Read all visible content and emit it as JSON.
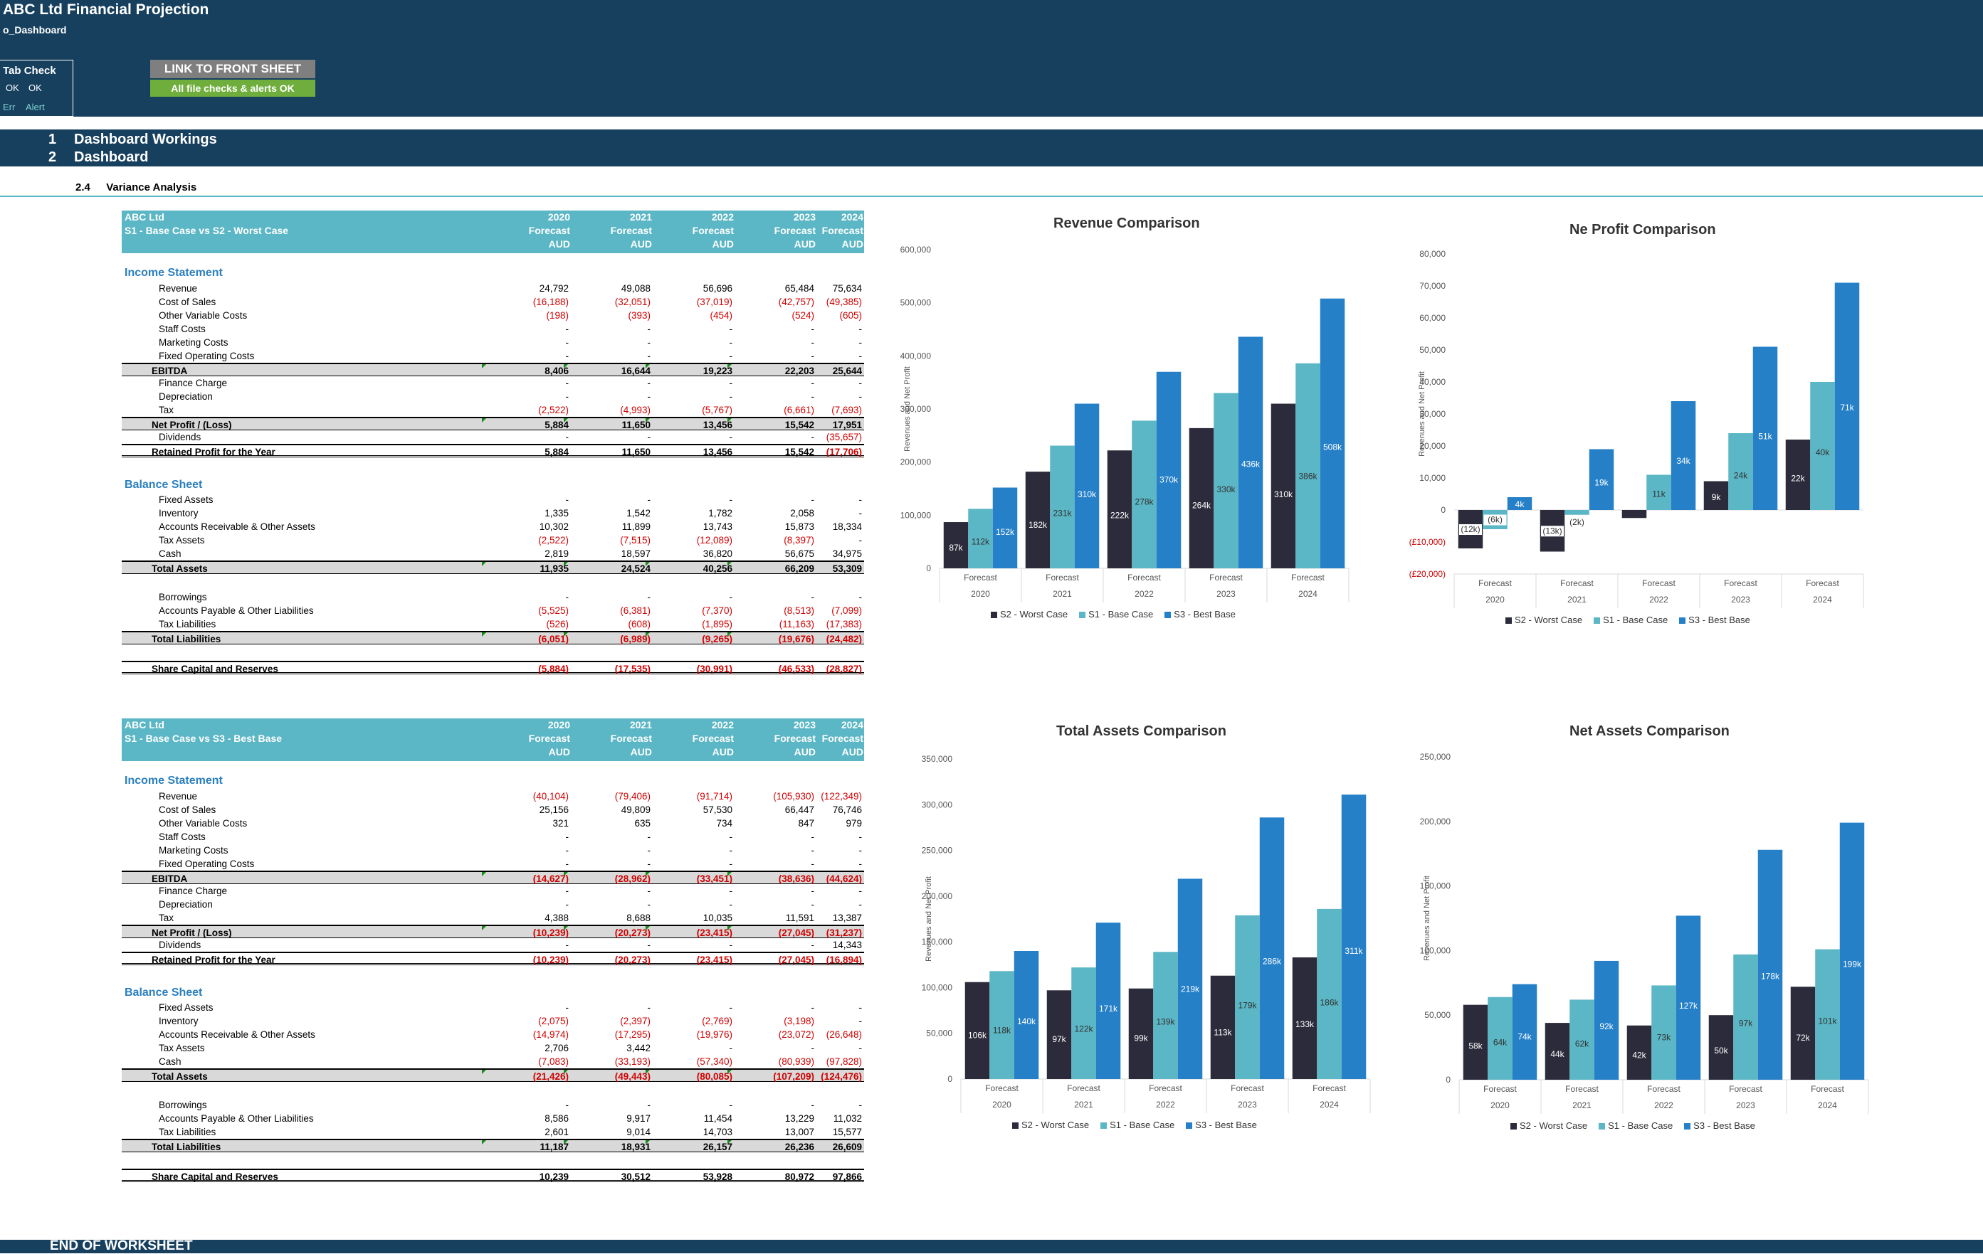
{
  "header": {
    "app_title": "ABC Ltd Financial Projection",
    "sheet_name": "o_Dashboard",
    "tab_check": {
      "title": "Tab Check",
      "ok1": "OK",
      "ok2": "OK",
      "err": "Err",
      "alert": "Alert"
    },
    "link_button": "LINK TO FRONT SHEET",
    "checks_status": "All file checks & alerts OK"
  },
  "sections": [
    {
      "num": "1",
      "label": "Dashboard Workings"
    },
    {
      "num": "2",
      "label": "Dashboard"
    }
  ],
  "subsection": {
    "num": "2.4",
    "label": "Variance Analysis"
  },
  "footer": "END OF WORKSHEET",
  "colors": {
    "dark_navy": "#17405f",
    "teal": "#5bb6c5",
    "s2": "#2b2b3b",
    "s1": "#5bb6c5",
    "s3": "#2580c8",
    "negative": "#d00000",
    "section_blue": "#2a7fbf",
    "ok_green": "#6fae3c",
    "button_grey": "#7f7f7f"
  },
  "tables": [
    {
      "company": "ABC Ltd",
      "comparison": "S1 - Base Case vs S2 - Worst Case",
      "years": [
        "2020",
        "2021",
        "2022",
        "2023",
        "2024"
      ],
      "period_label": "Forecast",
      "currency": "AUD",
      "income_title": "Income Statement",
      "balance_title": "Balance Sheet",
      "income": [
        {
          "label": "Revenue",
          "vals": [
            "24,792",
            "49,088",
            "56,696",
            "65,484",
            "75,634"
          ]
        },
        {
          "label": "Cost of Sales",
          "vals": [
            "(16,188)",
            "(32,051)",
            "(37,019)",
            "(42,757)",
            "(49,385)"
          ]
        },
        {
          "label": "Other Variable Costs",
          "vals": [
            "(198)",
            "(393)",
            "(454)",
            "(524)",
            "(605)"
          ]
        },
        {
          "label": "Staff Costs",
          "vals": [
            "-",
            "-",
            "-",
            "-",
            "-"
          ]
        },
        {
          "label": "Marketing Costs",
          "vals": [
            "-",
            "-",
            "-",
            "-",
            "-"
          ]
        },
        {
          "label": "Fixed Operating Costs",
          "vals": [
            "-",
            "-",
            "-",
            "-",
            "-"
          ]
        },
        {
          "label": "EBITDA",
          "vals": [
            "8,406",
            "16,644",
            "19,223",
            "22,203",
            "25,644"
          ],
          "total": true
        },
        {
          "label": "Finance Charge",
          "vals": [
            "-",
            "-",
            "-",
            "-",
            "-"
          ]
        },
        {
          "label": "Depreciation",
          "vals": [
            "-",
            "-",
            "-",
            "-",
            "-"
          ]
        },
        {
          "label": "Tax",
          "vals": [
            "(2,522)",
            "(4,993)",
            "(5,767)",
            "(6,661)",
            "(7,693)"
          ]
        },
        {
          "label": "Net Profit / (Loss)",
          "vals": [
            "5,884",
            "11,650",
            "13,456",
            "15,542",
            "17,951"
          ],
          "total": true
        },
        {
          "label": "Dividends",
          "vals": [
            "-",
            "-",
            "-",
            "-",
            "(35,657)"
          ]
        },
        {
          "label": "Retained Profit for the Year",
          "vals": [
            "5,884",
            "11,650",
            "13,456",
            "15,542",
            "(17,706)"
          ],
          "total2": true
        }
      ],
      "assets": [
        {
          "label": "Fixed Assets",
          "vals": [
            "-",
            "-",
            "-",
            "-",
            "-"
          ]
        },
        {
          "label": "Inventory",
          "vals": [
            "1,335",
            "1,542",
            "1,782",
            "2,058",
            "-"
          ]
        },
        {
          "label": "Accounts Receivable & Other Assets",
          "vals": [
            "10,302",
            "11,899",
            "13,743",
            "15,873",
            "18,334"
          ]
        },
        {
          "label": "Tax Assets",
          "vals": [
            "(2,522)",
            "(7,515)",
            "(12,089)",
            "(8,397)",
            "-"
          ]
        },
        {
          "label": "Cash",
          "vals": [
            "2,819",
            "18,597",
            "36,820",
            "56,675",
            "34,975"
          ]
        },
        {
          "label": "Total Assets",
          "vals": [
            "11,935",
            "24,524",
            "40,256",
            "66,209",
            "53,309"
          ],
          "total": true
        }
      ],
      "liabilities": [
        {
          "label": "Borrowings",
          "vals": [
            "-",
            "-",
            "-",
            "-",
            "-"
          ]
        },
        {
          "label": "Accounts Payable & Other Liabilities",
          "vals": [
            "(5,525)",
            "(6,381)",
            "(7,370)",
            "(8,513)",
            "(7,099)"
          ]
        },
        {
          "label": "Tax Liabilities",
          "vals": [
            "(526)",
            "(608)",
            "(1,895)",
            "(11,163)",
            "(17,383)"
          ]
        },
        {
          "label": "Total Liabilities",
          "vals": [
            "(6,051)",
            "(6,989)",
            "(9,265)",
            "(19,676)",
            "(24,482)"
          ],
          "total": true
        }
      ],
      "equity": {
        "label": "Share Capital and Reserves",
        "vals": [
          "(5,884)",
          "(17,535)",
          "(30,991)",
          "(46,533)",
          "(28,827)"
        ]
      }
    },
    {
      "company": "ABC Ltd",
      "comparison": "S1 - Base Case vs S3 - Best Base",
      "years": [
        "2020",
        "2021",
        "2022",
        "2023",
        "2024"
      ],
      "period_label": "Forecast",
      "currency": "AUD",
      "income_title": "Income Statement",
      "balance_title": "Balance Sheet",
      "income": [
        {
          "label": "Revenue",
          "vals": [
            "(40,104)",
            "(79,406)",
            "(91,714)",
            "(105,930)",
            "(122,349)"
          ]
        },
        {
          "label": "Cost of Sales",
          "vals": [
            "25,156",
            "49,809",
            "57,530",
            "66,447",
            "76,746"
          ]
        },
        {
          "label": "Other Variable Costs",
          "vals": [
            "321",
            "635",
            "734",
            "847",
            "979"
          ]
        },
        {
          "label": "Staff Costs",
          "vals": [
            "-",
            "-",
            "-",
            "-",
            "-"
          ]
        },
        {
          "label": "Marketing Costs",
          "vals": [
            "-",
            "-",
            "-",
            "-",
            "-"
          ]
        },
        {
          "label": "Fixed Operating Costs",
          "vals": [
            "-",
            "-",
            "-",
            "-",
            "-"
          ]
        },
        {
          "label": "EBITDA",
          "vals": [
            "(14,627)",
            "(28,962)",
            "(33,451)",
            "(38,636)",
            "(44,624)"
          ],
          "total": true
        },
        {
          "label": "Finance Charge",
          "vals": [
            "-",
            "-",
            "-",
            "-",
            "-"
          ]
        },
        {
          "label": "Depreciation",
          "vals": [
            "-",
            "-",
            "-",
            "-",
            "-"
          ]
        },
        {
          "label": "Tax",
          "vals": [
            "4,388",
            "8,688",
            "10,035",
            "11,591",
            "13,387"
          ]
        },
        {
          "label": "Net Profit / (Loss)",
          "vals": [
            "(10,239)",
            "(20,273)",
            "(23,415)",
            "(27,045)",
            "(31,237)"
          ],
          "total": true
        },
        {
          "label": "Dividends",
          "vals": [
            "-",
            "-",
            "-",
            "-",
            "14,343"
          ]
        },
        {
          "label": "Retained Profit for the Year",
          "vals": [
            "(10,239)",
            "(20,273)",
            "(23,415)",
            "(27,045)",
            "(16,894)"
          ],
          "total2": true
        }
      ],
      "assets": [
        {
          "label": "Fixed Assets",
          "vals": [
            "-",
            "-",
            "-",
            "-",
            "-"
          ]
        },
        {
          "label": "Inventory",
          "vals": [
            "(2,075)",
            "(2,397)",
            "(2,769)",
            "(3,198)",
            "-"
          ]
        },
        {
          "label": "Accounts Receivable & Other Assets",
          "vals": [
            "(14,974)",
            "(17,295)",
            "(19,976)",
            "(23,072)",
            "(26,648)"
          ]
        },
        {
          "label": "Tax Assets",
          "vals": [
            "2,706",
            "3,442",
            "-",
            "-",
            "-"
          ]
        },
        {
          "label": "Cash",
          "vals": [
            "(7,083)",
            "(33,193)",
            "(57,340)",
            "(80,939)",
            "(97,828)"
          ]
        },
        {
          "label": "Total Assets",
          "vals": [
            "(21,426)",
            "(49,443)",
            "(80,085)",
            "(107,209)",
            "(124,476)"
          ],
          "total": true
        }
      ],
      "liabilities": [
        {
          "label": "Borrowings",
          "vals": [
            "-",
            "-",
            "-",
            "-",
            "-"
          ]
        },
        {
          "label": "Accounts Payable & Other Liabilities",
          "vals": [
            "8,586",
            "9,917",
            "11,454",
            "13,229",
            "11,032"
          ]
        },
        {
          "label": "Tax Liabilities",
          "vals": [
            "2,601",
            "9,014",
            "14,703",
            "13,007",
            "15,577"
          ]
        },
        {
          "label": "Total Liabilities",
          "vals": [
            "11,187",
            "18,931",
            "26,157",
            "26,236",
            "26,609"
          ],
          "total": true
        }
      ],
      "equity": {
        "label": "Share Capital and Reserves",
        "vals": [
          "10,239",
          "30,512",
          "53,928",
          "80,972",
          "97,866"
        ]
      }
    }
  ],
  "chart_data": [
    {
      "type": "bar",
      "title": "Revenue Comparison",
      "ylabel": "Revenues and Net Profit",
      "ylim": [
        0,
        600000
      ],
      "yticks": [
        "0",
        "100,000",
        "200,000",
        "300,000",
        "400,000",
        "500,000",
        "600,000"
      ],
      "ytick_values": [
        0,
        100000,
        200000,
        300000,
        400000,
        500000,
        600000
      ],
      "categories": [
        "2020",
        "2021",
        "2022",
        "2023",
        "2024"
      ],
      "category_group": "Forecast",
      "series": [
        {
          "name": "S2 - Worst Case",
          "values": [
            87000,
            182000,
            222000,
            264000,
            310000
          ],
          "labels": [
            "87k",
            "182k",
            "222k",
            "264k",
            "310k"
          ]
        },
        {
          "name": "S1 - Base Case",
          "values": [
            112000,
            231000,
            278000,
            330000,
            386000
          ],
          "labels": [
            "112k",
            "231k",
            "278k",
            "330k",
            "386k"
          ]
        },
        {
          "name": "S3 - Best Base",
          "values": [
            152000,
            310000,
            370000,
            436000,
            508000
          ],
          "labels": [
            "152k",
            "310k",
            "370k",
            "436k",
            "508k"
          ]
        }
      ]
    },
    {
      "type": "bar",
      "title": "Ne Profit Comparison",
      "ylabel": "Revenues and Net Profit",
      "ylim": [
        -20000,
        80000
      ],
      "yticks": [
        "(£20,000)",
        "(£10,000)",
        "0",
        "10,000",
        "20,000",
        "30,000",
        "40,000",
        "50,000",
        "60,000",
        "70,000",
        "80,000"
      ],
      "ytick_values": [
        -20000,
        -10000,
        0,
        10000,
        20000,
        30000,
        40000,
        50000,
        60000,
        70000,
        80000
      ],
      "categories": [
        "2020",
        "2021",
        "2022",
        "2023",
        "2024"
      ],
      "category_group": "Forecast",
      "series": [
        {
          "name": "S2 - Worst Case",
          "values": [
            -12000,
            -13000,
            -2500,
            9000,
            22000
          ],
          "labels": [
            "(12k)",
            "(13k)",
            "",
            "9k",
            "22k"
          ]
        },
        {
          "name": "S1 - Base Case",
          "values": [
            -6000,
            -1500,
            11000,
            24000,
            40000
          ],
          "labels": [
            "(6k)",
            "(2k)",
            "11k",
            "24k",
            "40k"
          ]
        },
        {
          "name": "S3 - Best Base",
          "values": [
            4000,
            19000,
            34000,
            51000,
            71000
          ],
          "labels": [
            "4k",
            "19k",
            "34k",
            "51k",
            "71k"
          ]
        }
      ]
    },
    {
      "type": "bar",
      "title": "Total Assets Comparison",
      "ylabel": "Revenues and Net Profit",
      "ylim": [
        0,
        350000
      ],
      "yticks": [
        "0",
        "50,000",
        "100,000",
        "150,000",
        "200,000",
        "250,000",
        "300,000",
        "350,000"
      ],
      "ytick_values": [
        0,
        50000,
        100000,
        150000,
        200000,
        250000,
        300000,
        350000
      ],
      "categories": [
        "2020",
        "2021",
        "2022",
        "2023",
        "2024"
      ],
      "category_group": "Forecast",
      "series": [
        {
          "name": "S2 - Worst Case",
          "values": [
            106000,
            97000,
            99000,
            113000,
            133000
          ],
          "labels": [
            "106k",
            "97k",
            "99k",
            "113k",
            "133k"
          ]
        },
        {
          "name": "S1 - Base Case",
          "values": [
            118000,
            122000,
            139000,
            179000,
            186000
          ],
          "labels": [
            "118k",
            "122k",
            "139k",
            "179k",
            "186k"
          ]
        },
        {
          "name": "S3 - Best Base",
          "values": [
            140000,
            171000,
            219000,
            286000,
            311000
          ],
          "labels": [
            "140k",
            "171k",
            "219k",
            "286k",
            "311k"
          ]
        }
      ]
    },
    {
      "type": "bar",
      "title": "Net Assets Comparison",
      "ylabel": "Revenues and Net Profit",
      "ylim": [
        0,
        250000
      ],
      "yticks": [
        "0",
        "50,000",
        "100,000",
        "150,000",
        "200,000",
        "250,000"
      ],
      "ytick_values": [
        0,
        50000,
        100000,
        150000,
        200000,
        250000
      ],
      "categories": [
        "2020",
        "2021",
        "2022",
        "2023",
        "2024"
      ],
      "category_group": "Forecast",
      "series": [
        {
          "name": "S2 - Worst Case",
          "values": [
            58000,
            44000,
            42000,
            50000,
            72000
          ],
          "labels": [
            "58k",
            "44k",
            "42k",
            "50k",
            "72k"
          ]
        },
        {
          "name": "S1 - Base Case",
          "values": [
            64000,
            62000,
            73000,
            97000,
            101000
          ],
          "labels": [
            "64k",
            "62k",
            "73k",
            "97k",
            "101k"
          ]
        },
        {
          "name": "S3 - Best Base",
          "values": [
            74000,
            92000,
            127000,
            178000,
            199000
          ],
          "labels": [
            "74k",
            "92k",
            "127k",
            "178k",
            "199k"
          ]
        }
      ]
    }
  ]
}
